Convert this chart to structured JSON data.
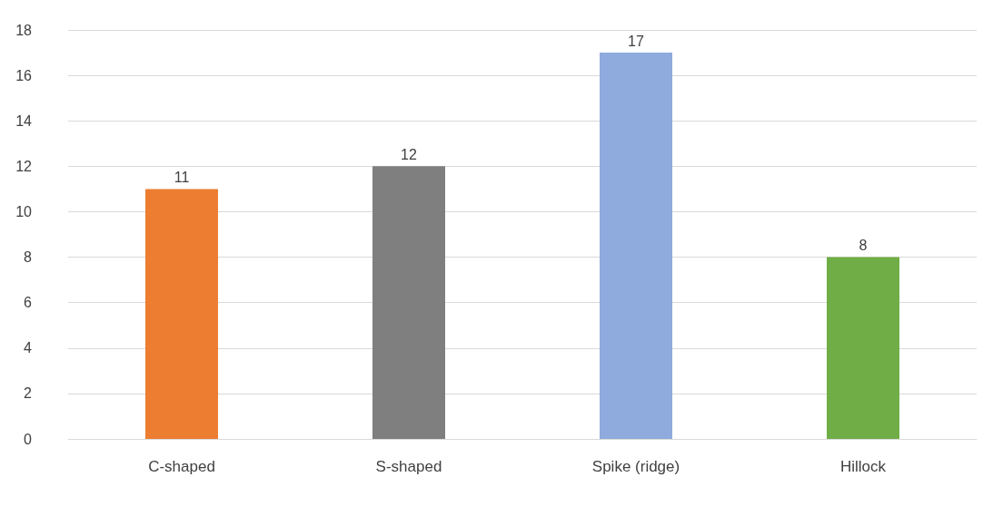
{
  "chart_data": {
    "type": "bar",
    "categories": [
      "C-shaped",
      "S-shaped",
      "Spike (ridge)",
      "Hillock"
    ],
    "values": [
      11,
      12,
      17,
      8
    ],
    "colors": [
      "#ed7d31",
      "#7f7f7f",
      "#8faadc",
      "#70ad47"
    ],
    "ylim": [
      0,
      18
    ],
    "yticks": [
      0,
      2,
      4,
      6,
      8,
      10,
      12,
      14,
      16,
      18
    ],
    "grid": "y",
    "data_labels": true
  }
}
